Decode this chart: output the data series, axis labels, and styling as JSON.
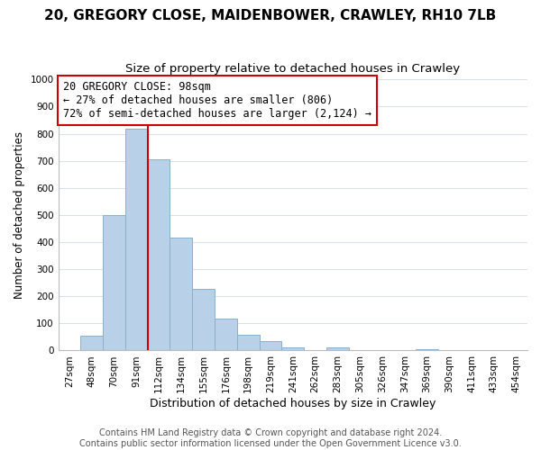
{
  "title": "20, GREGORY CLOSE, MAIDENBOWER, CRAWLEY, RH10 7LB",
  "subtitle": "Size of property relative to detached houses in Crawley",
  "xlabel": "Distribution of detached houses by size in Crawley",
  "ylabel": "Number of detached properties",
  "bar_labels": [
    "27sqm",
    "48sqm",
    "70sqm",
    "91sqm",
    "112sqm",
    "134sqm",
    "155sqm",
    "176sqm",
    "198sqm",
    "219sqm",
    "241sqm",
    "262sqm",
    "283sqm",
    "305sqm",
    "326sqm",
    "347sqm",
    "369sqm",
    "390sqm",
    "411sqm",
    "433sqm",
    "454sqm"
  ],
  "bar_values": [
    0,
    55,
    500,
    820,
    705,
    415,
    228,
    118,
    57,
    35,
    10,
    0,
    12,
    0,
    0,
    0,
    5,
    0,
    0,
    0,
    0
  ],
  "bar_color": "#b8d0e8",
  "bar_edge_color": "#8ab0cc",
  "vline_color": "#cc0000",
  "annotation_title": "20 GREGORY CLOSE: 98sqm",
  "annotation_line1": "← 27% of detached houses are smaller (806)",
  "annotation_line2": "72% of semi-detached houses are larger (2,124) →",
  "annotation_box_color": "#ffffff",
  "annotation_box_edge_color": "#cc0000",
  "ylim": [
    0,
    1000
  ],
  "yticks": [
    0,
    100,
    200,
    300,
    400,
    500,
    600,
    700,
    800,
    900,
    1000
  ],
  "footer_line1": "Contains HM Land Registry data © Crown copyright and database right 2024.",
  "footer_line2": "Contains public sector information licensed under the Open Government Licence v3.0.",
  "title_fontsize": 11,
  "subtitle_fontsize": 9.5,
  "xlabel_fontsize": 9,
  "ylabel_fontsize": 8.5,
  "tick_fontsize": 7.5,
  "annotation_fontsize": 8.5,
  "footer_fontsize": 7
}
